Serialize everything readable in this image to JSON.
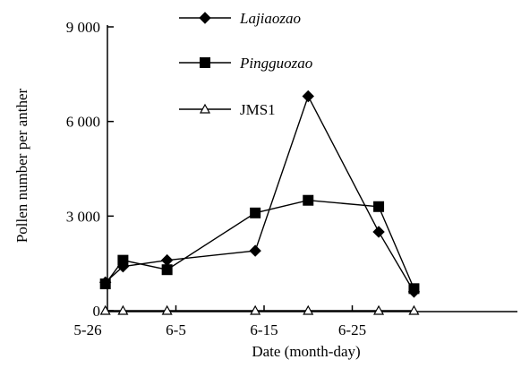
{
  "chart_data": {
    "type": "line",
    "xlabel": "Date (month-day)",
    "ylabel": "Pollen number per anther",
    "x_ticks": [
      {
        "day": 0,
        "label": "5-26"
      },
      {
        "day": 10,
        "label": "6-5"
      },
      {
        "day": 20,
        "label": "6-15"
      },
      {
        "day": 30,
        "label": "6-25"
      }
    ],
    "y_ticks": [
      {
        "value": 0,
        "label": "0"
      },
      {
        "value": 3000,
        "label": "3 000"
      },
      {
        "value": 6000,
        "label": "6 000"
      },
      {
        "value": 9000,
        "label": "9 000"
      }
    ],
    "xlim": [
      0,
      36
    ],
    "ylim": [
      0,
      9000
    ],
    "legend_position": "top-center",
    "series": [
      {
        "name": "Lajiaozao",
        "marker": "diamond",
        "italic": true,
        "points": [
          {
            "day": 2,
            "value": 900
          },
          {
            "day": 4,
            "value": 1400
          },
          {
            "day": 9,
            "value": 1600
          },
          {
            "day": 19,
            "value": 1900
          },
          {
            "day": 25,
            "value": 6800
          },
          {
            "day": 33,
            "value": 2500
          },
          {
            "day": 37,
            "value": 600
          }
        ]
      },
      {
        "name": "Pingguozao",
        "marker": "square",
        "italic": true,
        "points": [
          {
            "day": 2,
            "value": 850
          },
          {
            "day": 4,
            "value": 1600
          },
          {
            "day": 9,
            "value": 1300
          },
          {
            "day": 19,
            "value": 3100
          },
          {
            "day": 25,
            "value": 3500
          },
          {
            "day": 33,
            "value": 3300
          },
          {
            "day": 37,
            "value": 700
          }
        ]
      },
      {
        "name": "JMS1",
        "marker": "triangle-open",
        "italic": false,
        "points": [
          {
            "day": 2,
            "value": 0
          },
          {
            "day": 4,
            "value": 0
          },
          {
            "day": 9,
            "value": 0
          },
          {
            "day": 19,
            "value": 0
          },
          {
            "day": 25,
            "value": 0
          },
          {
            "day": 33,
            "value": 0
          },
          {
            "day": 37,
            "value": 0
          }
        ]
      }
    ]
  }
}
